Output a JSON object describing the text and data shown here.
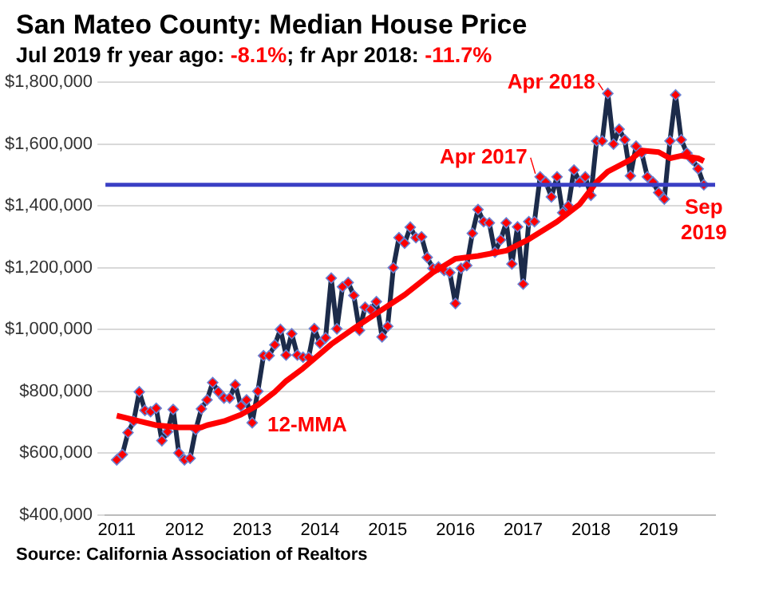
{
  "chart_data": {
    "type": "line",
    "title": "San Mateo County: Median House Price",
    "subtitle": "Jul 2019 fr year ago: -8.1%; fr Apr 2018: -11.7%",
    "x": [
      "2011-01",
      "2011-02",
      "2011-03",
      "2011-04",
      "2011-05",
      "2011-06",
      "2011-07",
      "2011-08",
      "2011-09",
      "2011-10",
      "2011-11",
      "2011-12",
      "2012-01",
      "2012-02",
      "2012-03",
      "2012-04",
      "2012-05",
      "2012-06",
      "2012-07",
      "2012-08",
      "2012-09",
      "2012-10",
      "2012-11",
      "2012-12",
      "2013-01",
      "2013-02",
      "2013-03",
      "2013-04",
      "2013-05",
      "2013-06",
      "2013-07",
      "2013-08",
      "2013-09",
      "2013-10",
      "2013-11",
      "2013-12",
      "2014-01",
      "2014-02",
      "2014-03",
      "2014-04",
      "2014-05",
      "2014-06",
      "2014-07",
      "2014-08",
      "2014-09",
      "2014-10",
      "2014-11",
      "2014-12",
      "2015-01",
      "2015-02",
      "2015-03",
      "2015-04",
      "2015-05",
      "2015-06",
      "2015-07",
      "2015-08",
      "2015-09",
      "2015-10",
      "2015-11",
      "2015-12",
      "2016-01",
      "2016-02",
      "2016-03",
      "2016-04",
      "2016-05",
      "2016-06",
      "2016-07",
      "2016-08",
      "2016-09",
      "2016-10",
      "2016-11",
      "2016-12",
      "2017-01",
      "2017-02",
      "2017-03",
      "2017-04",
      "2017-05",
      "2017-06",
      "2017-07",
      "2017-08",
      "2017-09",
      "2017-10",
      "2017-11",
      "2017-12",
      "2018-01",
      "2018-02",
      "2018-03",
      "2018-04",
      "2018-05",
      "2018-06",
      "2018-07",
      "2018-08",
      "2018-09",
      "2018-10",
      "2018-11",
      "2018-12",
      "2019-01",
      "2019-02",
      "2019-03",
      "2019-04",
      "2019-05",
      "2019-06",
      "2019-07",
      "2019-08",
      "2019-09"
    ],
    "series": [
      {
        "color": "#1c2b4a",
        "marker": "diamond",
        "values": [
          578000,
          595000,
          666000,
          703000,
          798000,
          738000,
          734000,
          745000,
          640000,
          669000,
          741000,
          600000,
          578000,
          583000,
          676000,
          743000,
          772000,
          828000,
          798000,
          778000,
          778000,
          821000,
          752000,
          772000,
          698000,
          800000,
          915000,
          915000,
          950000,
          1000000,
          917000,
          986000,
          917000,
          910000,
          910000,
          1003000,
          955000,
          973000,
          1166000,
          1002000,
          1138000,
          1152000,
          1110000,
          997000,
          1072000,
          1064000,
          1090000,
          976000,
          1010000,
          1200000,
          1297000,
          1279000,
          1331000,
          1297000,
          1300000,
          1233000,
          1198000,
          1202000,
          1191000,
          1184000,
          1084000,
          1198000,
          1207000,
          1311000,
          1388000,
          1349000,
          1345000,
          1250000,
          1290000,
          1345000,
          1212000,
          1332000,
          1147000,
          1349000,
          1349000,
          1494000,
          1477000,
          1429000,
          1494000,
          1378000,
          1400000,
          1516000,
          1477000,
          1494000,
          1434000,
          1610000,
          1610000,
          1764000,
          1600000,
          1648000,
          1614000,
          1497000,
          1593000,
          1571000,
          1494000,
          1477000,
          1443000,
          1422000,
          1610000,
          1759000,
          1614000,
          1571000,
          1549000,
          1520000,
          1468000
        ]
      },
      {
        "name": "12-MMA",
        "color": "#ff0000",
        "marker": "none",
        "x": [
          "2011-01",
          "2011-05",
          "2011-08",
          "2011-12",
          "2012-04",
          "2012-05",
          "2012-08",
          "2012-11",
          "2013-02",
          "2013-05",
          "2013-07",
          "2013-10",
          "2014-03",
          "2014-07",
          "2014-12",
          "2015-04",
          "2015-09",
          "2016-01",
          "2016-05",
          "2016-10",
          "2017-02",
          "2017-07",
          "2017-11",
          "2018-02",
          "2018-04",
          "2018-08",
          "2018-10",
          "2019-01",
          "2019-03",
          "2019-05",
          "2019-08",
          "2019-09"
        ],
        "values": [
          721000,
          703000,
          690000,
          683000,
          683000,
          690000,
          703000,
          724000,
          755000,
          798000,
          833000,
          874000,
          952000,
          1003000,
          1064000,
          1112000,
          1184000,
          1229000,
          1238000,
          1255000,
          1292000,
          1349000,
          1405000,
          1477000,
          1511000,
          1549000,
          1579000,
          1574000,
          1554000,
          1562000,
          1554000,
          1545000
        ]
      }
    ],
    "xlim": [
      "2010-11",
      "2019-11"
    ],
    "xticks": [
      "2011",
      "2012",
      "2013",
      "2014",
      "2015",
      "2016",
      "2017",
      "2018",
      "2019"
    ],
    "ylim": [
      400000,
      1800000
    ],
    "yticks": [
      {
        "value": 400000,
        "label": "$400,000"
      },
      {
        "value": 600000,
        "label": "$600,000"
      },
      {
        "value": 800000,
        "label": "$800,000"
      },
      {
        "value": 1000000,
        "label": "$1,000,000"
      },
      {
        "value": 1200000,
        "label": "$1,200,000"
      },
      {
        "value": 1400000,
        "label": "$1,400,000"
      },
      {
        "value": 1600000,
        "label": "$1,600,000"
      },
      {
        "value": 1800000,
        "label": "$1,800,000"
      }
    ],
    "ref_lines": [
      {
        "axis": "y",
        "value": 1468000,
        "color": "#3a3fc4"
      }
    ],
    "annotations": [
      {
        "text": "Apr 2018",
        "x": "2018-04",
        "y": 1764000
      },
      {
        "text": "Apr 2017",
        "x": "2017-04",
        "y": 1494000
      },
      {
        "text": "Sep 2019",
        "x": "2019-09",
        "y": 1468000
      },
      "Source: California Association of Realtors"
    ],
    "grid": "y",
    "legend": false,
    "line_style": "solid"
  }
}
